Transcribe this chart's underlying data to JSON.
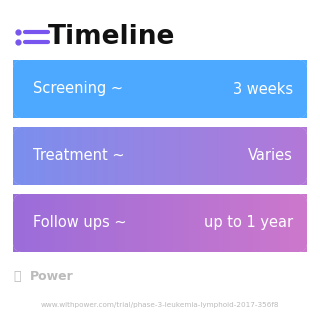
{
  "title": "Timeline",
  "title_fontsize": 19,
  "title_fontweight": "bold",
  "bg_color": "#ffffff",
  "rows": [
    {
      "label": "Screening ~",
      "value": "3 weeks",
      "color_left": "#4d9fff",
      "color_right": "#4d9fff"
    },
    {
      "label": "Treatment ~",
      "value": "Varies",
      "color_left": "#7b8ff0",
      "color_right": "#b07ad8"
    },
    {
      "label": "Follow ups ~",
      "value": "up to 1 year",
      "color_left": "#9b6dda",
      "color_right": "#cc77cc"
    }
  ],
  "icon_color": "#7755ee",
  "footer_logo_color": "#bbbbbb",
  "footer_text": "www.withpower.com/trial/phase-3-leukemia-lymphoid-2017-356f8",
  "footer_fontsize": 5.2,
  "power_text": "Power",
  "power_fontsize": 9
}
